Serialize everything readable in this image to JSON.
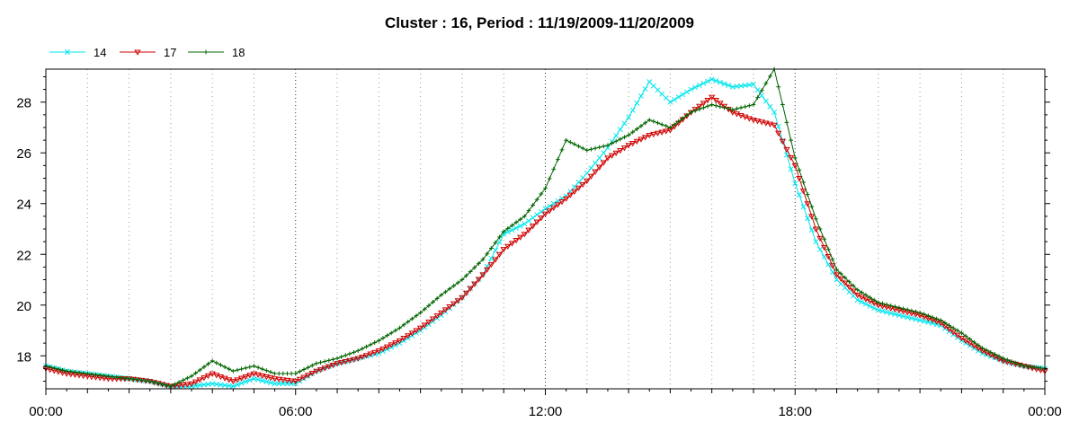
{
  "chart_data": {
    "type": "line",
    "title": "Cluster : 16, Period : 11/19/2009-11/20/2009",
    "xlabel": "",
    "ylabel": "",
    "xlim": [
      0,
      24
    ],
    "ylim": [
      16.7,
      29.3
    ],
    "x_tick_labels": [
      "00:00",
      "06:00",
      "12:00",
      "18:00",
      "00:00"
    ],
    "x_tick_values": [
      0,
      6,
      12,
      18,
      24
    ],
    "y_tick_labels": [
      "18",
      "20",
      "22",
      "24",
      "26",
      "28"
    ],
    "y_tick_values": [
      18,
      20,
      22,
      24,
      26,
      28
    ],
    "grid": "vertical dotted",
    "legend_position": "top-left",
    "x": [
      0,
      0.5,
      1,
      1.5,
      2,
      2.5,
      3,
      3.5,
      4,
      4.5,
      5,
      5.5,
      6,
      6.5,
      7,
      7.5,
      8,
      8.5,
      9,
      9.5,
      10,
      10.5,
      11,
      11.5,
      12,
      12.5,
      13,
      13.5,
      14,
      14.5,
      15,
      15.5,
      16,
      16.5,
      17,
      17.5,
      18,
      18.5,
      19,
      19.5,
      20,
      20.5,
      21,
      21.5,
      22,
      22.5,
      23,
      23.5,
      24
    ],
    "series": [
      {
        "name": "14",
        "color": "#00e5ee",
        "marker": "x",
        "values": [
          17.6,
          17.4,
          17.3,
          17.2,
          17.1,
          17.0,
          16.8,
          16.8,
          16.9,
          16.8,
          17.1,
          16.9,
          16.9,
          17.4,
          17.7,
          17.9,
          18.1,
          18.5,
          19.0,
          19.6,
          20.3,
          21.2,
          22.8,
          23.2,
          23.8,
          24.3,
          25.2,
          26.2,
          27.4,
          28.8,
          28.0,
          28.5,
          28.9,
          28.6,
          28.7,
          27.6,
          24.8,
          22.5,
          21.0,
          20.2,
          19.8,
          19.6,
          19.4,
          19.2,
          18.6,
          18.1,
          17.8,
          17.6,
          17.5
        ]
      },
      {
        "name": "17",
        "color": "#d00000",
        "marker": "triangle-down",
        "values": [
          17.5,
          17.3,
          17.2,
          17.1,
          17.1,
          17.0,
          16.8,
          16.9,
          17.3,
          17.0,
          17.3,
          17.1,
          17.0,
          17.4,
          17.7,
          17.9,
          18.2,
          18.6,
          19.1,
          19.7,
          20.3,
          21.2,
          22.2,
          22.8,
          23.6,
          24.2,
          24.9,
          25.8,
          26.3,
          26.7,
          26.9,
          27.6,
          28.2,
          27.6,
          27.3,
          27.1,
          25.5,
          23.0,
          21.2,
          20.4,
          20.0,
          19.8,
          19.6,
          19.3,
          18.7,
          18.2,
          17.8,
          17.6,
          17.4
        ]
      },
      {
        "name": "18",
        "color": "#006400",
        "marker": "plus",
        "values": [
          17.6,
          17.4,
          17.3,
          17.2,
          17.1,
          17.0,
          16.8,
          17.2,
          17.8,
          17.4,
          17.6,
          17.3,
          17.3,
          17.7,
          17.9,
          18.2,
          18.6,
          19.1,
          19.7,
          20.4,
          21.0,
          21.8,
          22.9,
          23.5,
          24.6,
          26.5,
          26.1,
          26.3,
          26.7,
          27.3,
          27.0,
          27.6,
          27.9,
          27.7,
          27.9,
          29.3,
          25.8,
          23.4,
          21.4,
          20.6,
          20.1,
          19.9,
          19.7,
          19.4,
          18.9,
          18.3,
          17.9,
          17.6,
          17.5
        ]
      }
    ]
  }
}
